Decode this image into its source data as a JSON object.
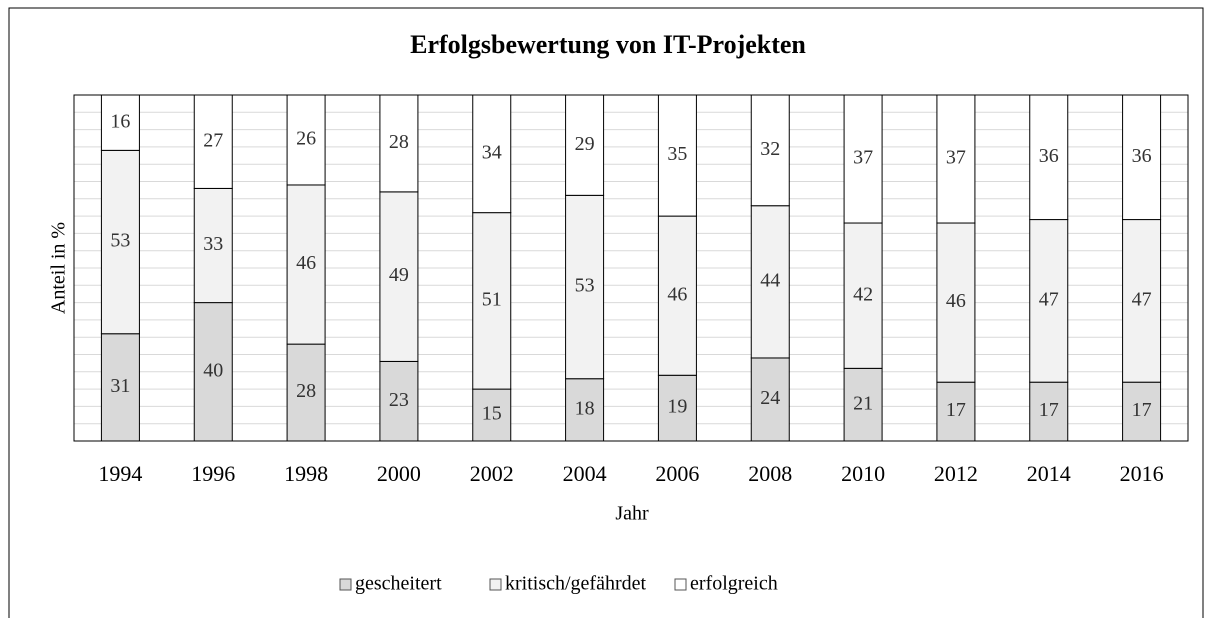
{
  "chart_data": {
    "type": "stacked_bar",
    "title": "Erfolgsbewertung von IT-Projekten",
    "xlabel": "Jahr",
    "ylabel": "Anteil in %",
    "categories": [
      "1994",
      "1996",
      "1998",
      "2000",
      "2002",
      "2004",
      "2006",
      "2008",
      "2010",
      "2012",
      "2014",
      "2016"
    ],
    "series": [
      {
        "name": "gescheitert",
        "color": "#d9d9d9",
        "values": [
          31,
          40,
          28,
          23,
          15,
          18,
          19,
          24,
          21,
          17,
          17,
          17
        ]
      },
      {
        "name": "kritisch/gefährdet",
        "color": "#f2f2f2",
        "values": [
          53,
          33,
          46,
          49,
          51,
          53,
          46,
          44,
          42,
          46,
          47,
          47
        ]
      },
      {
        "name": "erfolgreich",
        "color": "#ffffff",
        "values": [
          16,
          27,
          26,
          28,
          34,
          29,
          35,
          32,
          37,
          37,
          36,
          36
        ]
      }
    ],
    "ylim": [
      0,
      100
    ],
    "yticks": [
      0,
      5,
      10,
      15,
      20,
      25,
      30,
      35,
      40,
      45,
      50,
      55,
      60,
      65,
      70,
      75,
      80,
      85,
      90,
      95,
      100
    ],
    "grid": true,
    "legend": "bottom"
  }
}
